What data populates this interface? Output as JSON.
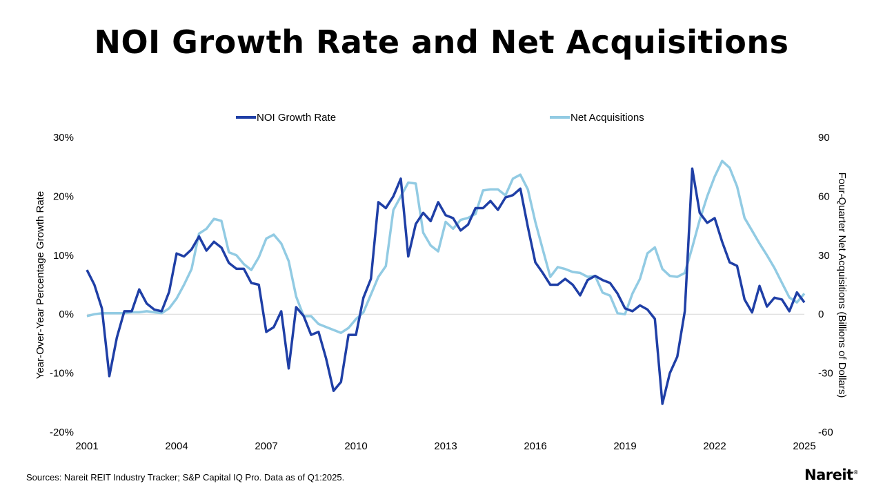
{
  "title": "NOI Growth Rate and Net Acquisitions",
  "footer": {
    "source": "Sources: Nareit REIT Industry Tracker; S&P Capital IQ Pro. Data as of Q1:2025.",
    "logo_text": "Nareit",
    "logo_mark": "®"
  },
  "colors": {
    "noi": "#1f3fa6",
    "acq": "#92cbe3",
    "zero_line": "#d8d8d8"
  },
  "chart_data": {
    "type": "line",
    "title": "NOI Growth Rate and Net Acquisitions",
    "xlabel": "",
    "ylabel": "Year-Over-Year Percentage Growth Rate",
    "ylabel_right": "Four-Quarter Net Acquisitions (Billions of Dollars)",
    "x_range": [
      2001,
      2025
    ],
    "ylim": [
      -20,
      30
    ],
    "ylim_right": [
      -60,
      90
    ],
    "x_ticks": [
      {
        "value": 2001,
        "label": "2001"
      },
      {
        "value": 2004,
        "label": "2004"
      },
      {
        "value": 2007,
        "label": "2007"
      },
      {
        "value": 2010,
        "label": "2010"
      },
      {
        "value": 2013,
        "label": "2013"
      },
      {
        "value": 2016,
        "label": "2016"
      },
      {
        "value": 2019,
        "label": "2019"
      },
      {
        "value": 2022,
        "label": "2022"
      },
      {
        "value": 2025,
        "label": "2025"
      }
    ],
    "y_ticks_left": [
      {
        "value": 30,
        "label": "30%"
      },
      {
        "value": 20,
        "label": "20%"
      },
      {
        "value": 10,
        "label": "10%"
      },
      {
        "value": 0,
        "label": "0%"
      },
      {
        "value": -10,
        "label": "-10%"
      },
      {
        "value": -20,
        "label": "-20%"
      }
    ],
    "y_ticks_right": [
      {
        "value": 90,
        "label": "90"
      },
      {
        "value": 60,
        "label": "60"
      },
      {
        "value": 30,
        "label": "30"
      },
      {
        "value": 0,
        "label": "0"
      },
      {
        "value": -30,
        "label": "-30"
      },
      {
        "value": -60,
        "label": "-60"
      }
    ],
    "legend": "top-center",
    "series": [
      {
        "name": "NOI Growth Rate",
        "axis": "left",
        "points": [
          [
            2001.0,
            7.5
          ],
          [
            2001.25,
            5.0
          ],
          [
            2001.5,
            1.0
          ],
          [
            2001.75,
            -10.5
          ],
          [
            2002.0,
            -4.0
          ],
          [
            2002.25,
            0.5
          ],
          [
            2002.5,
            0.5
          ],
          [
            2002.75,
            4.2
          ],
          [
            2003.0,
            1.8
          ],
          [
            2003.25,
            0.8
          ],
          [
            2003.5,
            0.5
          ],
          [
            2003.75,
            3.8
          ],
          [
            2004.0,
            10.3
          ],
          [
            2004.25,
            9.8
          ],
          [
            2004.5,
            11.0
          ],
          [
            2004.75,
            13.2
          ],
          [
            2005.0,
            10.8
          ],
          [
            2005.25,
            12.3
          ],
          [
            2005.5,
            11.3
          ],
          [
            2005.75,
            8.7
          ],
          [
            2006.0,
            7.7
          ],
          [
            2006.25,
            7.7
          ],
          [
            2006.5,
            5.3
          ],
          [
            2006.75,
            5.0
          ],
          [
            2007.0,
            -3.0
          ],
          [
            2007.25,
            -2.2
          ],
          [
            2007.5,
            0.5
          ],
          [
            2007.75,
            -9.2
          ],
          [
            2008.0,
            1.2
          ],
          [
            2008.25,
            -0.3
          ],
          [
            2008.5,
            -3.5
          ],
          [
            2008.75,
            -3.0
          ],
          [
            2009.0,
            -7.5
          ],
          [
            2009.25,
            -13.0
          ],
          [
            2009.5,
            -11.5
          ],
          [
            2009.75,
            -3.5
          ],
          [
            2010.0,
            -3.5
          ],
          [
            2010.25,
            2.8
          ],
          [
            2010.5,
            6.0
          ],
          [
            2010.75,
            19.0
          ],
          [
            2011.0,
            18.0
          ],
          [
            2011.25,
            20.0
          ],
          [
            2011.5,
            23.0
          ],
          [
            2011.75,
            9.8
          ],
          [
            2012.0,
            15.3
          ],
          [
            2012.25,
            17.2
          ],
          [
            2012.5,
            15.8
          ],
          [
            2012.75,
            19.0
          ],
          [
            2013.0,
            16.8
          ],
          [
            2013.25,
            16.3
          ],
          [
            2013.5,
            14.2
          ],
          [
            2013.75,
            15.2
          ],
          [
            2014.0,
            18.0
          ],
          [
            2014.25,
            18.0
          ],
          [
            2014.5,
            19.2
          ],
          [
            2014.75,
            17.7
          ],
          [
            2015.0,
            19.8
          ],
          [
            2015.25,
            20.2
          ],
          [
            2015.5,
            21.3
          ],
          [
            2015.75,
            14.8
          ],
          [
            2016.0,
            8.8
          ],
          [
            2016.25,
            7.0
          ],
          [
            2016.5,
            5.0
          ],
          [
            2016.75,
            5.0
          ],
          [
            2017.0,
            6.0
          ],
          [
            2017.25,
            5.0
          ],
          [
            2017.5,
            3.2
          ],
          [
            2017.75,
            5.8
          ],
          [
            2018.0,
            6.5
          ],
          [
            2018.25,
            5.8
          ],
          [
            2018.5,
            5.3
          ],
          [
            2018.75,
            3.5
          ],
          [
            2019.0,
            1.0
          ],
          [
            2019.25,
            0.5
          ],
          [
            2019.5,
            1.5
          ],
          [
            2019.75,
            0.8
          ],
          [
            2020.0,
            -0.8
          ],
          [
            2020.25,
            -15.2
          ],
          [
            2020.5,
            -10.0
          ],
          [
            2020.75,
            -7.2
          ],
          [
            2021.0,
            0.5
          ],
          [
            2021.25,
            24.7
          ],
          [
            2021.5,
            17.2
          ],
          [
            2021.75,
            15.5
          ],
          [
            2022.0,
            16.3
          ],
          [
            2022.25,
            12.3
          ],
          [
            2022.5,
            8.8
          ],
          [
            2022.75,
            8.2
          ],
          [
            2023.0,
            2.5
          ],
          [
            2023.25,
            0.3
          ],
          [
            2023.5,
            4.8
          ],
          [
            2023.75,
            1.3
          ],
          [
            2024.0,
            2.8
          ],
          [
            2024.25,
            2.5
          ],
          [
            2024.5,
            0.5
          ],
          [
            2024.75,
            3.7
          ],
          [
            2025.0,
            2.0
          ]
        ]
      },
      {
        "name": "Net Acquisitions",
        "axis": "right",
        "points": [
          [
            2001.0,
            -1.0
          ],
          [
            2001.25,
            0.0
          ],
          [
            2001.5,
            0.5
          ],
          [
            2001.75,
            0.5
          ],
          [
            2002.0,
            0.5
          ],
          [
            2002.25,
            0.5
          ],
          [
            2002.5,
            1.0
          ],
          [
            2002.75,
            1.0
          ],
          [
            2003.0,
            1.5
          ],
          [
            2003.25,
            1.0
          ],
          [
            2003.5,
            0.5
          ],
          [
            2003.75,
            3.0
          ],
          [
            2004.0,
            8.0
          ],
          [
            2004.25,
            15.0
          ],
          [
            2004.5,
            23.0
          ],
          [
            2004.75,
            41.0
          ],
          [
            2005.0,
            43.5
          ],
          [
            2005.25,
            48.5
          ],
          [
            2005.5,
            47.5
          ],
          [
            2005.75,
            31.5
          ],
          [
            2006.0,
            30.0
          ],
          [
            2006.25,
            25.5
          ],
          [
            2006.5,
            22.5
          ],
          [
            2006.75,
            29.0
          ],
          [
            2007.0,
            38.5
          ],
          [
            2007.25,
            40.5
          ],
          [
            2007.5,
            36.0
          ],
          [
            2007.75,
            27.0
          ],
          [
            2008.0,
            9.0
          ],
          [
            2008.25,
            -1.0
          ],
          [
            2008.5,
            -1.0
          ],
          [
            2008.75,
            -5.0
          ],
          [
            2009.0,
            -6.5
          ],
          [
            2009.25,
            -8.0
          ],
          [
            2009.5,
            -9.5
          ],
          [
            2009.75,
            -7.0
          ],
          [
            2010.0,
            -2.5
          ],
          [
            2010.25,
            1.0
          ],
          [
            2010.5,
            10.0
          ],
          [
            2010.75,
            19.0
          ],
          [
            2011.0,
            24.5
          ],
          [
            2011.25,
            53.0
          ],
          [
            2011.5,
            60.0
          ],
          [
            2011.75,
            67.0
          ],
          [
            2012.0,
            66.5
          ],
          [
            2012.25,
            41.5
          ],
          [
            2012.5,
            35.0
          ],
          [
            2012.75,
            32.0
          ],
          [
            2013.0,
            47.0
          ],
          [
            2013.25,
            43.5
          ],
          [
            2013.5,
            48.0
          ],
          [
            2013.75,
            49.0
          ],
          [
            2014.0,
            51.0
          ],
          [
            2014.25,
            63.0
          ],
          [
            2014.5,
            63.5
          ],
          [
            2014.75,
            63.5
          ],
          [
            2015.0,
            60.5
          ],
          [
            2015.25,
            69.0
          ],
          [
            2015.5,
            71.0
          ],
          [
            2015.75,
            63.5
          ],
          [
            2016.0,
            47.0
          ],
          [
            2016.25,
            33.0
          ],
          [
            2016.5,
            19.0
          ],
          [
            2016.75,
            24.0
          ],
          [
            2017.0,
            23.0
          ],
          [
            2017.25,
            21.5
          ],
          [
            2017.5,
            21.0
          ],
          [
            2017.75,
            19.0
          ],
          [
            2018.0,
            19.5
          ],
          [
            2018.25,
            11.0
          ],
          [
            2018.5,
            9.5
          ],
          [
            2018.75,
            0.5
          ],
          [
            2019.0,
            0.0
          ],
          [
            2019.25,
            10.5
          ],
          [
            2019.5,
            18.0
          ],
          [
            2019.75,
            31.0
          ],
          [
            2020.0,
            34.0
          ],
          [
            2020.25,
            23.0
          ],
          [
            2020.5,
            19.5
          ],
          [
            2020.75,
            19.0
          ],
          [
            2021.0,
            21.0
          ],
          [
            2021.25,
            34.0
          ],
          [
            2021.5,
            48.0
          ],
          [
            2021.75,
            60.0
          ],
          [
            2022.0,
            70.0
          ],
          [
            2022.25,
            78.0
          ],
          [
            2022.5,
            74.5
          ],
          [
            2022.75,
            65.0
          ],
          [
            2023.0,
            49.0
          ],
          [
            2023.25,
            42.5
          ],
          [
            2023.5,
            36.0
          ],
          [
            2023.75,
            30.0
          ],
          [
            2024.0,
            23.5
          ],
          [
            2024.25,
            16.0
          ],
          [
            2024.5,
            8.5
          ],
          [
            2024.75,
            6.0
          ],
          [
            2025.0,
            10.5
          ]
        ]
      }
    ]
  }
}
